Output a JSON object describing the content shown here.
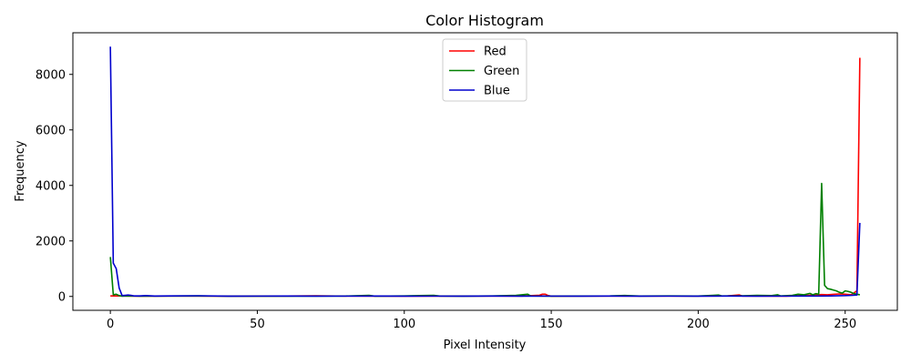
{
  "chart_data": {
    "type": "line",
    "title": "Color Histogram",
    "xlabel": "Pixel Intensity",
    "ylabel": "Frequency",
    "xlim": [
      -12.75,
      267.75
    ],
    "ylim": [
      -500,
      9500
    ],
    "xticks": [
      0,
      50,
      100,
      150,
      200,
      250
    ],
    "yticks": [
      0,
      2000,
      4000,
      6000,
      8000
    ],
    "grid": false,
    "legend": "top-center",
    "series": [
      {
        "name": "Red",
        "color": "#ff0000",
        "points": [
          [
            0,
            20
          ],
          [
            10,
            10
          ],
          [
            20,
            15
          ],
          [
            40,
            8
          ],
          [
            60,
            15
          ],
          [
            70,
            25
          ],
          [
            80,
            12
          ],
          [
            100,
            10
          ],
          [
            120,
            12
          ],
          [
            140,
            15
          ],
          [
            146,
            45
          ],
          [
            147,
            80
          ],
          [
            148,
            80
          ],
          [
            149,
            30
          ],
          [
            150,
            10
          ],
          [
            170,
            15
          ],
          [
            190,
            12
          ],
          [
            210,
            20
          ],
          [
            214,
            55
          ],
          [
            215,
            15
          ],
          [
            220,
            12
          ],
          [
            230,
            10
          ],
          [
            240,
            50
          ],
          [
            242,
            70
          ],
          [
            244,
            60
          ],
          [
            246,
            75
          ],
          [
            248,
            90
          ],
          [
            250,
            80
          ],
          [
            252,
            60
          ],
          [
            254,
            200
          ],
          [
            255,
            8600
          ]
        ]
      },
      {
        "name": "Green",
        "color": "#008000",
        "points": [
          [
            0,
            1420
          ],
          [
            1,
            60
          ],
          [
            2,
            80
          ],
          [
            3,
            30
          ],
          [
            4,
            10
          ],
          [
            6,
            20
          ],
          [
            10,
            10
          ],
          [
            20,
            15
          ],
          [
            30,
            20
          ],
          [
            40,
            8
          ],
          [
            60,
            10
          ],
          [
            80,
            15
          ],
          [
            88,
            40
          ],
          [
            90,
            10
          ],
          [
            100,
            20
          ],
          [
            105,
            30
          ],
          [
            110,
            40
          ],
          [
            112,
            15
          ],
          [
            120,
            10
          ],
          [
            130,
            20
          ],
          [
            138,
            40
          ],
          [
            140,
            60
          ],
          [
            142,
            80
          ],
          [
            143,
            20
          ],
          [
            150,
            10
          ],
          [
            160,
            15
          ],
          [
            170,
            20
          ],
          [
            175,
            35
          ],
          [
            180,
            15
          ],
          [
            190,
            20
          ],
          [
            200,
            15
          ],
          [
            205,
            40
          ],
          [
            207,
            50
          ],
          [
            208,
            20
          ],
          [
            215,
            25
          ],
          [
            220,
            40
          ],
          [
            225,
            30
          ],
          [
            227,
            60
          ],
          [
            228,
            20
          ],
          [
            232,
            40
          ],
          [
            234,
            80
          ],
          [
            236,
            60
          ],
          [
            238,
            110
          ],
          [
            239,
            60
          ],
          [
            240,
            100
          ],
          [
            241,
            80
          ],
          [
            242,
            4070
          ],
          [
            243,
            400
          ],
          [
            244,
            280
          ],
          [
            245,
            260
          ],
          [
            246,
            230
          ],
          [
            247,
            200
          ],
          [
            248,
            150
          ],
          [
            249,
            120
          ],
          [
            250,
            200
          ],
          [
            251,
            180
          ],
          [
            252,
            150
          ],
          [
            253,
            100
          ],
          [
            254,
            80
          ],
          [
            255,
            60
          ]
        ]
      },
      {
        "name": "Blue",
        "color": "#0000cd",
        "points": [
          [
            0,
            9000
          ],
          [
            1,
            1200
          ],
          [
            2,
            1000
          ],
          [
            3,
            300
          ],
          [
            4,
            30
          ],
          [
            5,
            40
          ],
          [
            6,
            50
          ],
          [
            7,
            40
          ],
          [
            8,
            20
          ],
          [
            10,
            20
          ],
          [
            12,
            30
          ],
          [
            15,
            15
          ],
          [
            20,
            20
          ],
          [
            30,
            25
          ],
          [
            40,
            10
          ],
          [
            50,
            12
          ],
          [
            60,
            15
          ],
          [
            70,
            10
          ],
          [
            80,
            12
          ],
          [
            90,
            15
          ],
          [
            100,
            10
          ],
          [
            110,
            12
          ],
          [
            120,
            10
          ],
          [
            130,
            15
          ],
          [
            140,
            10
          ],
          [
            150,
            12
          ],
          [
            160,
            10
          ],
          [
            170,
            15
          ],
          [
            180,
            10
          ],
          [
            190,
            12
          ],
          [
            200,
            10
          ],
          [
            210,
            15
          ],
          [
            220,
            10
          ],
          [
            230,
            12
          ],
          [
            240,
            15
          ],
          [
            245,
            20
          ],
          [
            250,
            30
          ],
          [
            252,
            40
          ],
          [
            254,
            50
          ],
          [
            255,
            2650
          ]
        ]
      }
    ]
  }
}
